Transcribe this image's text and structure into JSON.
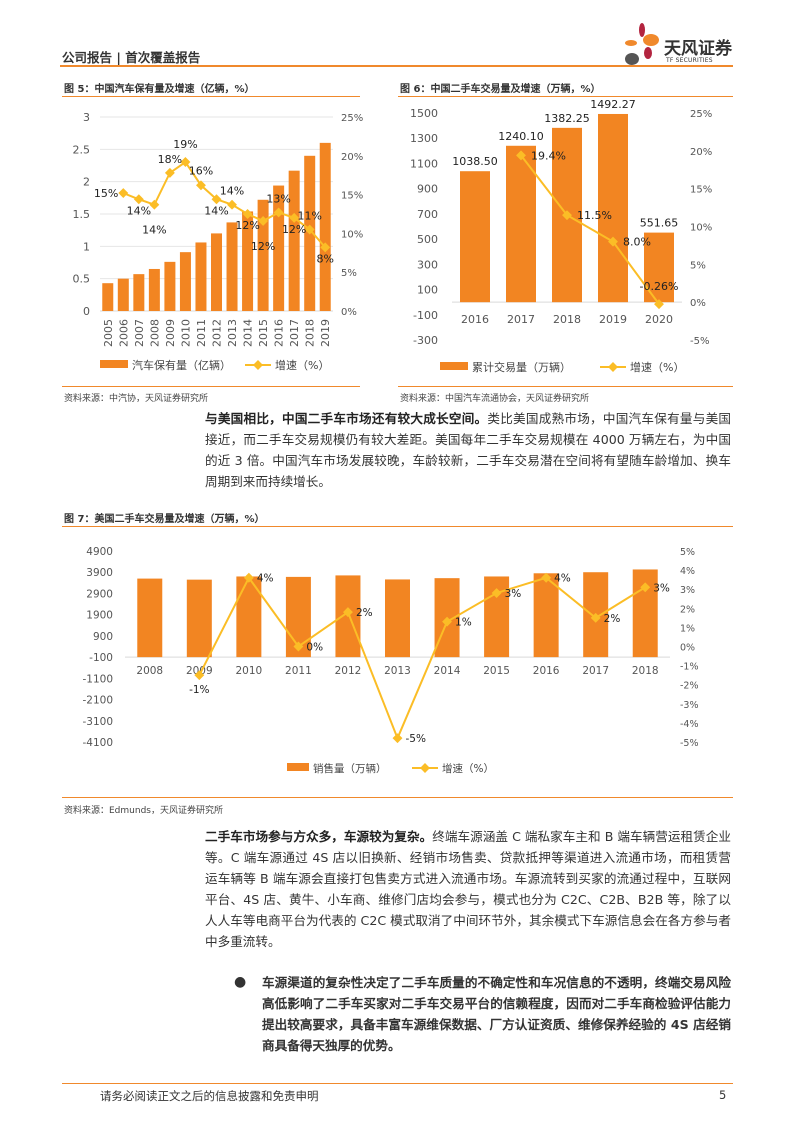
{
  "header": {
    "title": "公司报告 | 首次覆盖报告",
    "logo_cn": "天风证券",
    "logo_en": "TF SECURITIES"
  },
  "colors": {
    "accent": "#f0892c",
    "bar": "#f28522",
    "line": "#fbbd26"
  },
  "fig5": {
    "title": "图 5：中国汽车保有量及增速（亿辆，%）",
    "source": "资料来源：中汽协，天风证券研究所",
    "chart_data": {
      "type": "bar+line",
      "categories": [
        "2005",
        "2006",
        "2007",
        "2008",
        "2009",
        "2010",
        "2011",
        "2012",
        "2013",
        "2014",
        "2015",
        "2016",
        "2017",
        "2018",
        "2019"
      ],
      "series": [
        {
          "name": "汽车保有量（亿辆）",
          "type": "bar",
          "values": [
            0.43,
            0.5,
            0.57,
            0.65,
            0.76,
            0.91,
            1.06,
            1.2,
            1.37,
            1.54,
            1.72,
            1.94,
            2.17,
            2.4,
            2.6
          ]
        },
        {
          "name": "增速（%）",
          "type": "line",
          "axis": "right",
          "values": [
            null,
            15.2,
            14.4,
            13.7,
            17.8,
            19.2,
            16.2,
            14.4,
            13.7,
            12.5,
            11.6,
            12.7,
            12.0,
            10.5,
            8.2
          ],
          "labels": [
            "",
            "15%",
            "14%",
            "14%",
            "18%",
            "19%",
            "16%",
            "14%",
            "14%",
            "12%",
            "12%",
            "13%",
            "12%",
            "11%",
            "8%"
          ]
        }
      ],
      "ylim": [
        0,
        3
      ],
      "yticks": [
        "0",
        "0.5",
        "1",
        "1.5",
        "2",
        "2.5",
        "3"
      ],
      "y2lim": [
        0,
        25
      ],
      "y2ticks": [
        "0%",
        "5%",
        "10%",
        "15%",
        "20%",
        "25%"
      ],
      "legend": "bottom"
    }
  },
  "fig6": {
    "title": "图 6：中国二手车交易量及增速（万辆，%）",
    "source": "资料来源：中国汽车流通协会，天风证券研究所",
    "chart_data": {
      "type": "bar+line",
      "categories": [
        "2016",
        "2017",
        "2018",
        "2019",
        "2020"
      ],
      "series": [
        {
          "name": "累计交易量（万辆）",
          "type": "bar",
          "values": [
            1038.5,
            1240.1,
            1382.25,
            1492.27,
            551.65
          ],
          "labels": [
            "1038.50",
            "1240.10",
            "1382.25",
            "1492.27",
            "551.65"
          ]
        },
        {
          "name": "增速（%）",
          "type": "line",
          "axis": "right",
          "values": [
            null,
            19.4,
            11.5,
            8.0,
            -0.26
          ],
          "labels": [
            "",
            "19.4%",
            "11.5%",
            "8.0%",
            "-0.26%"
          ]
        }
      ],
      "ylim": [
        -300,
        1500
      ],
      "yticks": [
        "-300",
        "-100",
        "100",
        "300",
        "500",
        "700",
        "900",
        "1100",
        "1300",
        "1500"
      ],
      "y2lim": [
        -5,
        25
      ],
      "y2ticks": [
        "-5%",
        "0%",
        "5%",
        "10%",
        "15%",
        "20%",
        "25%"
      ],
      "legend": "bottom"
    }
  },
  "para1": {
    "bold": "与美国相比，中国二手车市场还有较大成长空间。",
    "text": "类比美国成熟市场，中国汽车保有量与美国接近，而二手车交易规模仍有较大差距。美国每年二手车交易规模在 4000 万辆左右，为中国的近 3 倍。中国汽车市场发展较晚，车龄较新，二手车交易潜在空间将有望随车龄增加、换车周期到来而持续增长。"
  },
  "fig7": {
    "title": "图 7：美国二手车交易量及增速（万辆，%）",
    "source": "资料来源：Edmunds，天风证券研究所",
    "chart_data": {
      "type": "bar+line",
      "categories": [
        "2008",
        "2009",
        "2010",
        "2011",
        "2012",
        "2013",
        "2014",
        "2015",
        "2016",
        "2017",
        "2018"
      ],
      "series": [
        {
          "name": "销售量（万辆）",
          "type": "bar",
          "values": [
            3600,
            3550,
            3700,
            3680,
            3750,
            3560,
            3620,
            3700,
            3850,
            3900,
            4030
          ]
        },
        {
          "name": "增速（%）",
          "type": "line",
          "axis": "right",
          "values": [
            null,
            -1.5,
            3.6,
            0.0,
            1.8,
            -4.8,
            1.3,
            2.8,
            3.6,
            1.5,
            3.1
          ],
          "labels": [
            "",
            "-1%",
            "4%",
            "0%",
            "2%",
            "-5%",
            "1%",
            "3%",
            "4%",
            "2%",
            "3%"
          ]
        }
      ],
      "ylim": [
        -4100,
        4900
      ],
      "yticks": [
        "-4100",
        "-3100",
        "-2100",
        "-1100",
        "-100",
        "900",
        "1900",
        "2900",
        "3900",
        "4900"
      ],
      "y2lim": [
        -5,
        5
      ],
      "y2ticks": [
        "-5%",
        "-4%",
        "-3%",
        "-2%",
        "-1%",
        "0%",
        "1%",
        "2%",
        "3%",
        "4%",
        "5%"
      ],
      "legend": "bottom"
    }
  },
  "para2": {
    "bold": "二手车市场参与方众多，车源较为复杂。",
    "text": "终端车源涵盖 C 端私家车主和 B 端车辆营运租赁企业等。C 端车源通过 4S 店以旧换新、经销市场售卖、贷款抵押等渠道进入流通市场，而租赁营运车辆等 B 端车源会直接打包售卖方式进入流通市场。车源流转到买家的流通过程中，互联网平台、4S 店、黄牛、小车商、维修门店均会参与，模式也分为 C2C、C2B、B2B 等，除了以人人车等电商平台为代表的 C2C 模式取消了中间环节外，其余模式下车源信息会在各方参与者中多重流转。"
  },
  "bullet1": {
    "text": "车源渠道的复杂性决定了二手车质量的不确定性和车况信息的不透明，终端交易风险高低影响了二手车买家对二手车交易平台的信赖程度，因而对二手车商检验评估能力提出较高要求，具备丰富车源维保数据、厂方认证资质、维修保养经验的 4S 店经销商具备得天独厚的优势。"
  },
  "footer": {
    "disclaimer": "请务必阅读正文之后的信息披露和免责申明",
    "page": "5"
  }
}
